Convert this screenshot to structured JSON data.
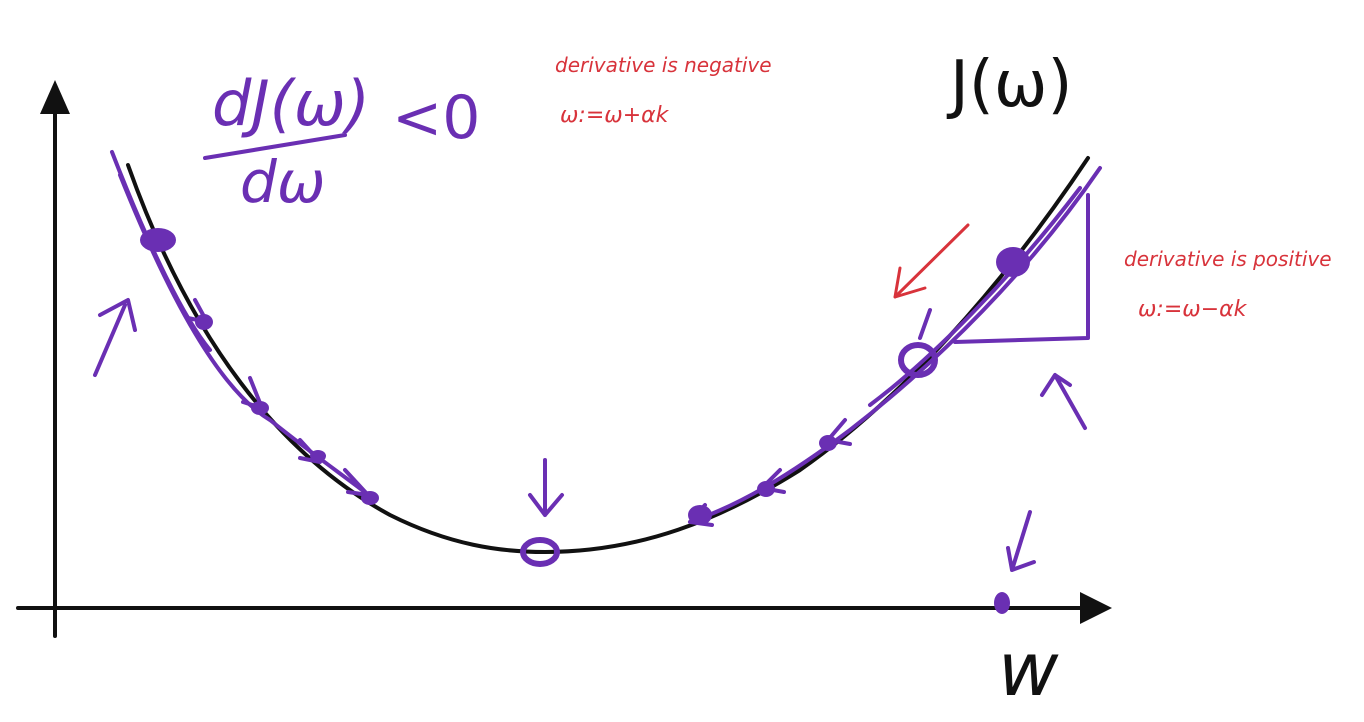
{
  "labels": {
    "cost_function": "J(ω)",
    "axis_w": "w",
    "derivative_numerator": "dJ(ω)",
    "derivative_denominator": "dω",
    "derivative_relation": "<0",
    "left_note_line1": "derivative is negative",
    "left_note_line2": "ω:=ω+αk",
    "right_note_line1": "derivative is positive",
    "right_note_line2": "ω:=ω−αk"
  },
  "colors": {
    "curve": "#111111",
    "axes": "#111111",
    "steps": "#6a2fb3",
    "notes": "#d8333b"
  }
}
